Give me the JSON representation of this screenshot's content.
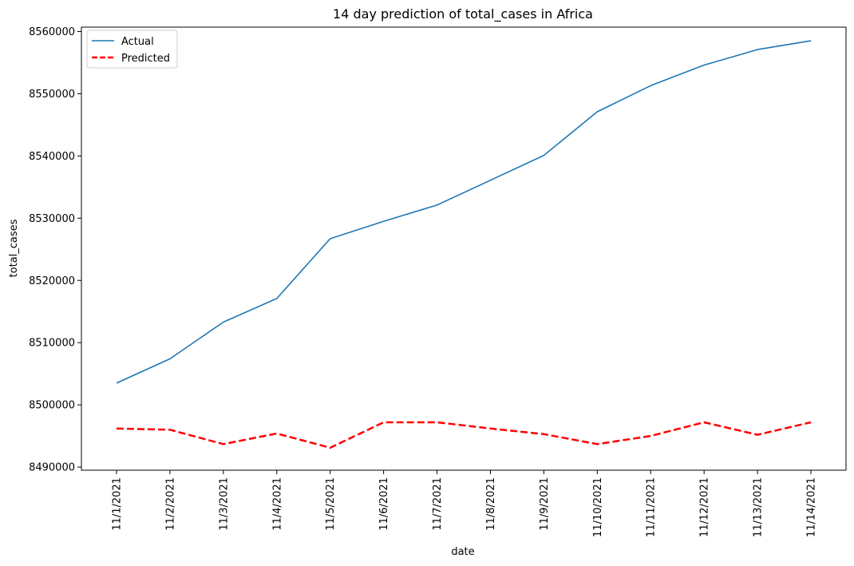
{
  "chart_data": {
    "type": "line",
    "title": "14 day prediction of total_cases in Africa",
    "xlabel": "date",
    "ylabel": "total_cases",
    "categories": [
      "11/1/2021",
      "11/2/2021",
      "11/3/2021",
      "11/4/2021",
      "11/5/2021",
      "11/6/2021",
      "11/7/2021",
      "11/8/2021",
      "11/9/2021",
      "11/10/2021",
      "11/11/2021",
      "11/12/2021",
      "11/13/2021",
      "11/14/2021"
    ],
    "ylim": [
      8489500,
      8560700
    ],
    "yticks": [
      8490000,
      8500000,
      8510000,
      8520000,
      8530000,
      8540000,
      8550000,
      8560000
    ],
    "ytick_labels": [
      "8490000",
      "8500000",
      "8510000",
      "8520000",
      "8530000",
      "8540000",
      "8550000",
      "8560000"
    ],
    "grid": false,
    "legend_position": "top-left",
    "series": [
      {
        "name": "Actual",
        "color": "#1f77b4",
        "style": "solid",
        "values": [
          8503500,
          8507400,
          8513300,
          8517100,
          8526700,
          8529500,
          8532100,
          8536100,
          8540100,
          8547100,
          8551300,
          8554600,
          8557100,
          8558500
        ]
      },
      {
        "name": "Predicted",
        "color": "#ff0000",
        "style": "dashed",
        "values": [
          8496200,
          8496000,
          8493700,
          8495400,
          8493100,
          8497200,
          8497200,
          8496200,
          8495300,
          8493700,
          8495000,
          8497200,
          8495200,
          8497200
        ]
      }
    ]
  }
}
